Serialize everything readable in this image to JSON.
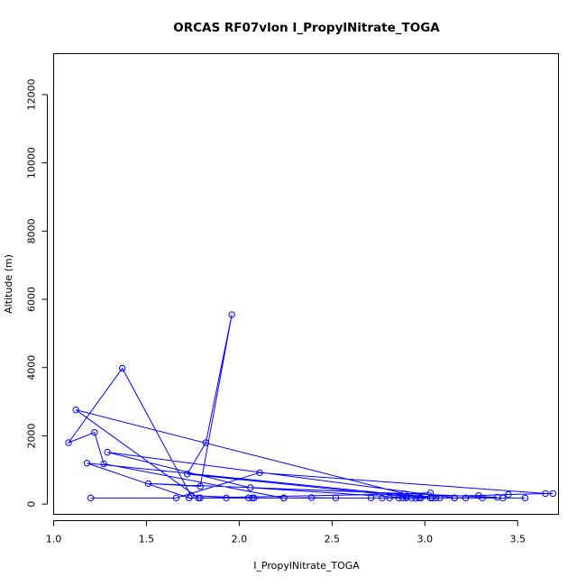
{
  "chart_data": {
    "type": "line",
    "title": "ORCAS RF07vlon I_PropylNitrate_TOGA",
    "xlabel": "I_PropylNitrate_TOGA",
    "ylabel": "Altitude (m)",
    "xlim": [
      1.0,
      3.72
    ],
    "ylim": [
      -300,
      13200
    ],
    "xticks": [
      1.0,
      1.5,
      2.0,
      2.5,
      3.0,
      3.5
    ],
    "xtick_labels": [
      "1.0",
      "1.5",
      "2.0",
      "2.5",
      "3.0",
      "3.5"
    ],
    "yticks": [
      0,
      2000,
      4000,
      6000,
      8000,
      10000,
      12000
    ],
    "ytick_labels": [
      "0",
      "2000",
      "4000",
      "6000",
      "8000",
      "10000",
      "12000"
    ],
    "grid": false,
    "color": "#0000ff",
    "series": [
      {
        "x": [
          1.2,
          1.66,
          2.11,
          3.65,
          3.69,
          3.45,
          3.29,
          2.9,
          1.72,
          1.82,
          1.96,
          1.79,
          1.51,
          3.39,
          2.95,
          2.06,
          1.29,
          3.16,
          2.24,
          1.27,
          1.22,
          1.08,
          1.37,
          1.74,
          2.05,
          1.79,
          2.24,
          2.39,
          2.52,
          2.71,
          2.88,
          3.03,
          3.16,
          3.31,
          3.54,
          3.42,
          2.81,
          2.08,
          1.93,
          2.07,
          1.73,
          1.18,
          3.04,
          2.9,
          2.97,
          2.77,
          2.86,
          3.08,
          3.22,
          2.98,
          1.12,
          1.78,
          2.89,
          3.03,
          3.06,
          2.93
        ],
        "y": [
          180,
          180,
          920,
          310,
          310,
          280,
          250,
          220,
          880,
          1800,
          5550,
          520,
          600,
          200,
          170,
          480,
          1520,
          180,
          180,
          1180,
          2100,
          1800,
          3980,
          250,
          180,
          180,
          180,
          190,
          180,
          180,
          180,
          180,
          180,
          180,
          180,
          180,
          180,
          180,
          180,
          180,
          180,
          1200,
          180,
          180,
          180,
          180,
          180,
          180,
          180,
          180,
          2760,
          180,
          300,
          330,
          180,
          180
        ]
      }
    ]
  }
}
